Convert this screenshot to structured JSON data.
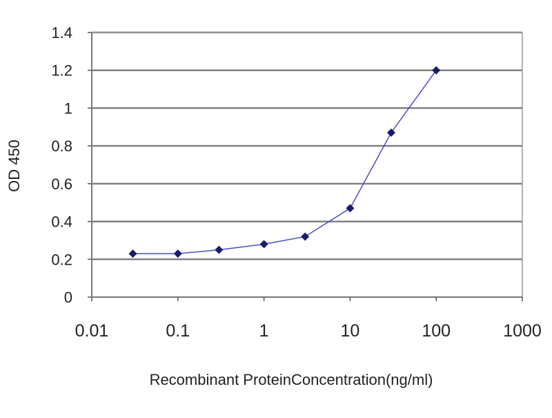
{
  "chart_data": {
    "type": "line",
    "title": "",
    "xlabel": "Recombinant ProteinConcentration(ng/ml)",
    "ylabel": "OD 450",
    "x_scale": "log",
    "xlim": [
      0.01,
      1000
    ],
    "ylim": [
      0,
      1.4
    ],
    "x_ticks": [
      "0.01",
      "0.1",
      "1",
      "10",
      "100",
      "1000"
    ],
    "y_ticks": [
      "0",
      "0.2",
      "0.4",
      "0.6",
      "0.8",
      "1",
      "1.2",
      "1.4"
    ],
    "grid": "horizontal",
    "series": [
      {
        "x": [
          0.03,
          0.1,
          0.3,
          1,
          3,
          10,
          30,
          100
        ],
        "y": [
          0.23,
          0.23,
          0.25,
          0.28,
          0.32,
          0.47,
          0.87,
          1.2
        ]
      }
    ],
    "colors": {
      "series": "#1a1a6e",
      "line": "#4a4ac8",
      "grid": "#808080"
    }
  }
}
